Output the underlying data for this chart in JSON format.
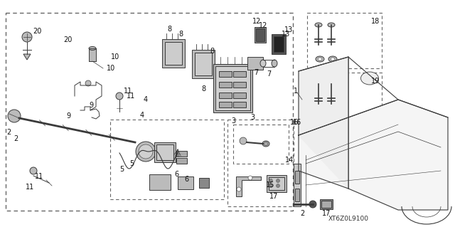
{
  "bg_color": "#ffffff",
  "line_color": "#3a3a3a",
  "light_gray": "#bbbbbb",
  "mid_gray": "#888888",
  "dark_gray": "#555555",
  "dashed_color": "#666666",
  "text_color": "#111111",
  "watermark": "XT6Z0L9100",
  "fig_width": 6.4,
  "fig_height": 3.19,
  "dpi": 100,
  "font_size": 7.0
}
